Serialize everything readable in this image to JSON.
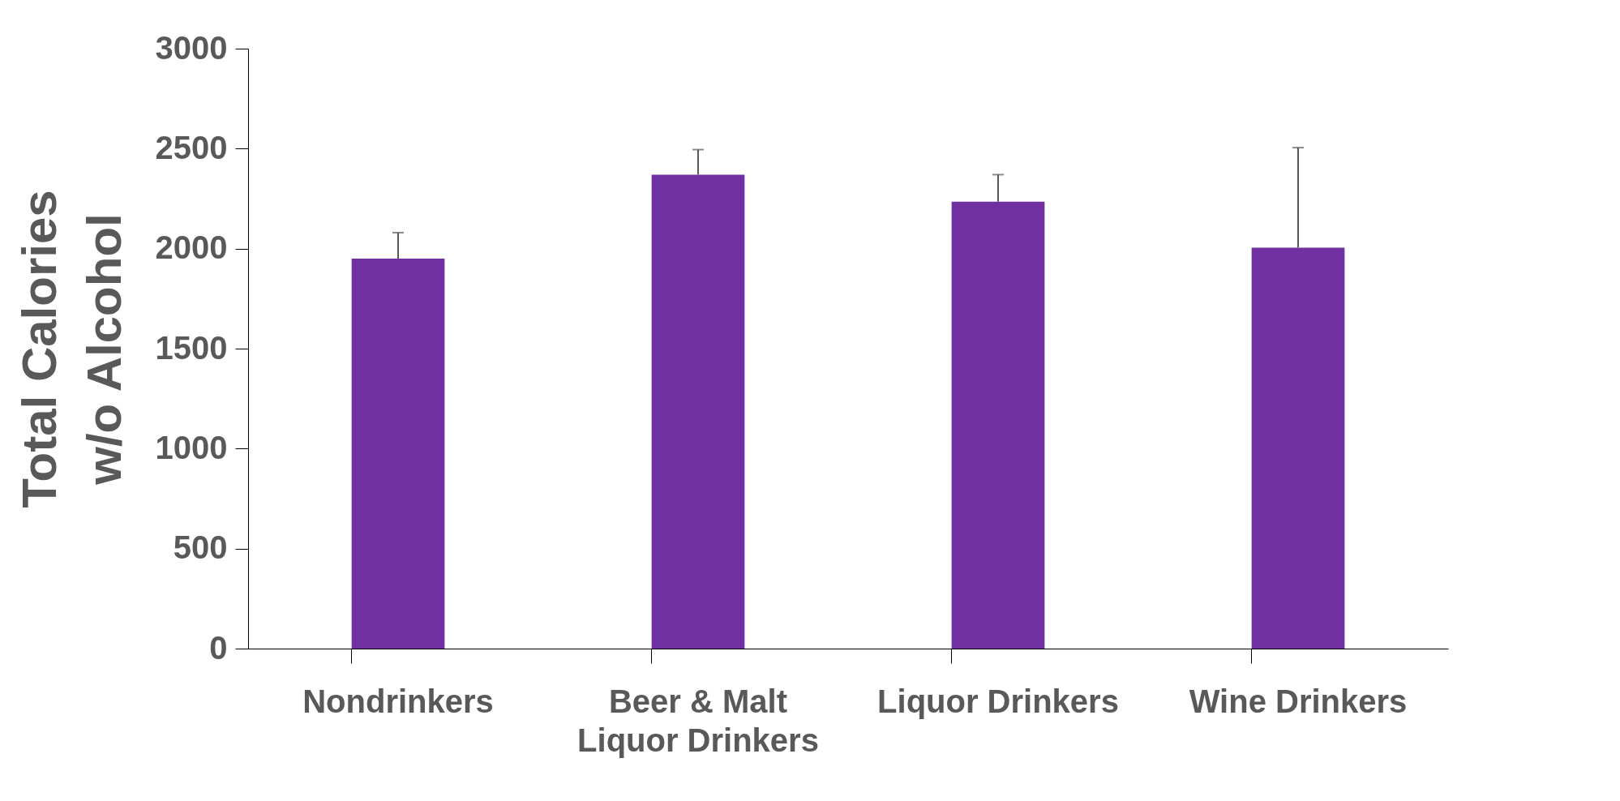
{
  "chart_data": {
    "type": "bar",
    "ylabel": "Total Calories w/o Alcohol",
    "categories": [
      "Nondrinkers",
      "Beer & Malt Liquor Drinkers",
      "Liquor Drinkers",
      "Wine Drinkers"
    ],
    "values": [
      1950,
      2370,
      2235,
      2005
    ],
    "errors": [
      [
        1950,
        2080
      ],
      [
        2370,
        2495
      ],
      [
        2235,
        2370
      ],
      [
        2005,
        2505
      ]
    ],
    "color": "#7030a0",
    "ylim": [
      0,
      3000
    ],
    "yticks": [
      0,
      500,
      1000,
      1500,
      2000,
      2500,
      3000
    ],
    "grid": false
  }
}
